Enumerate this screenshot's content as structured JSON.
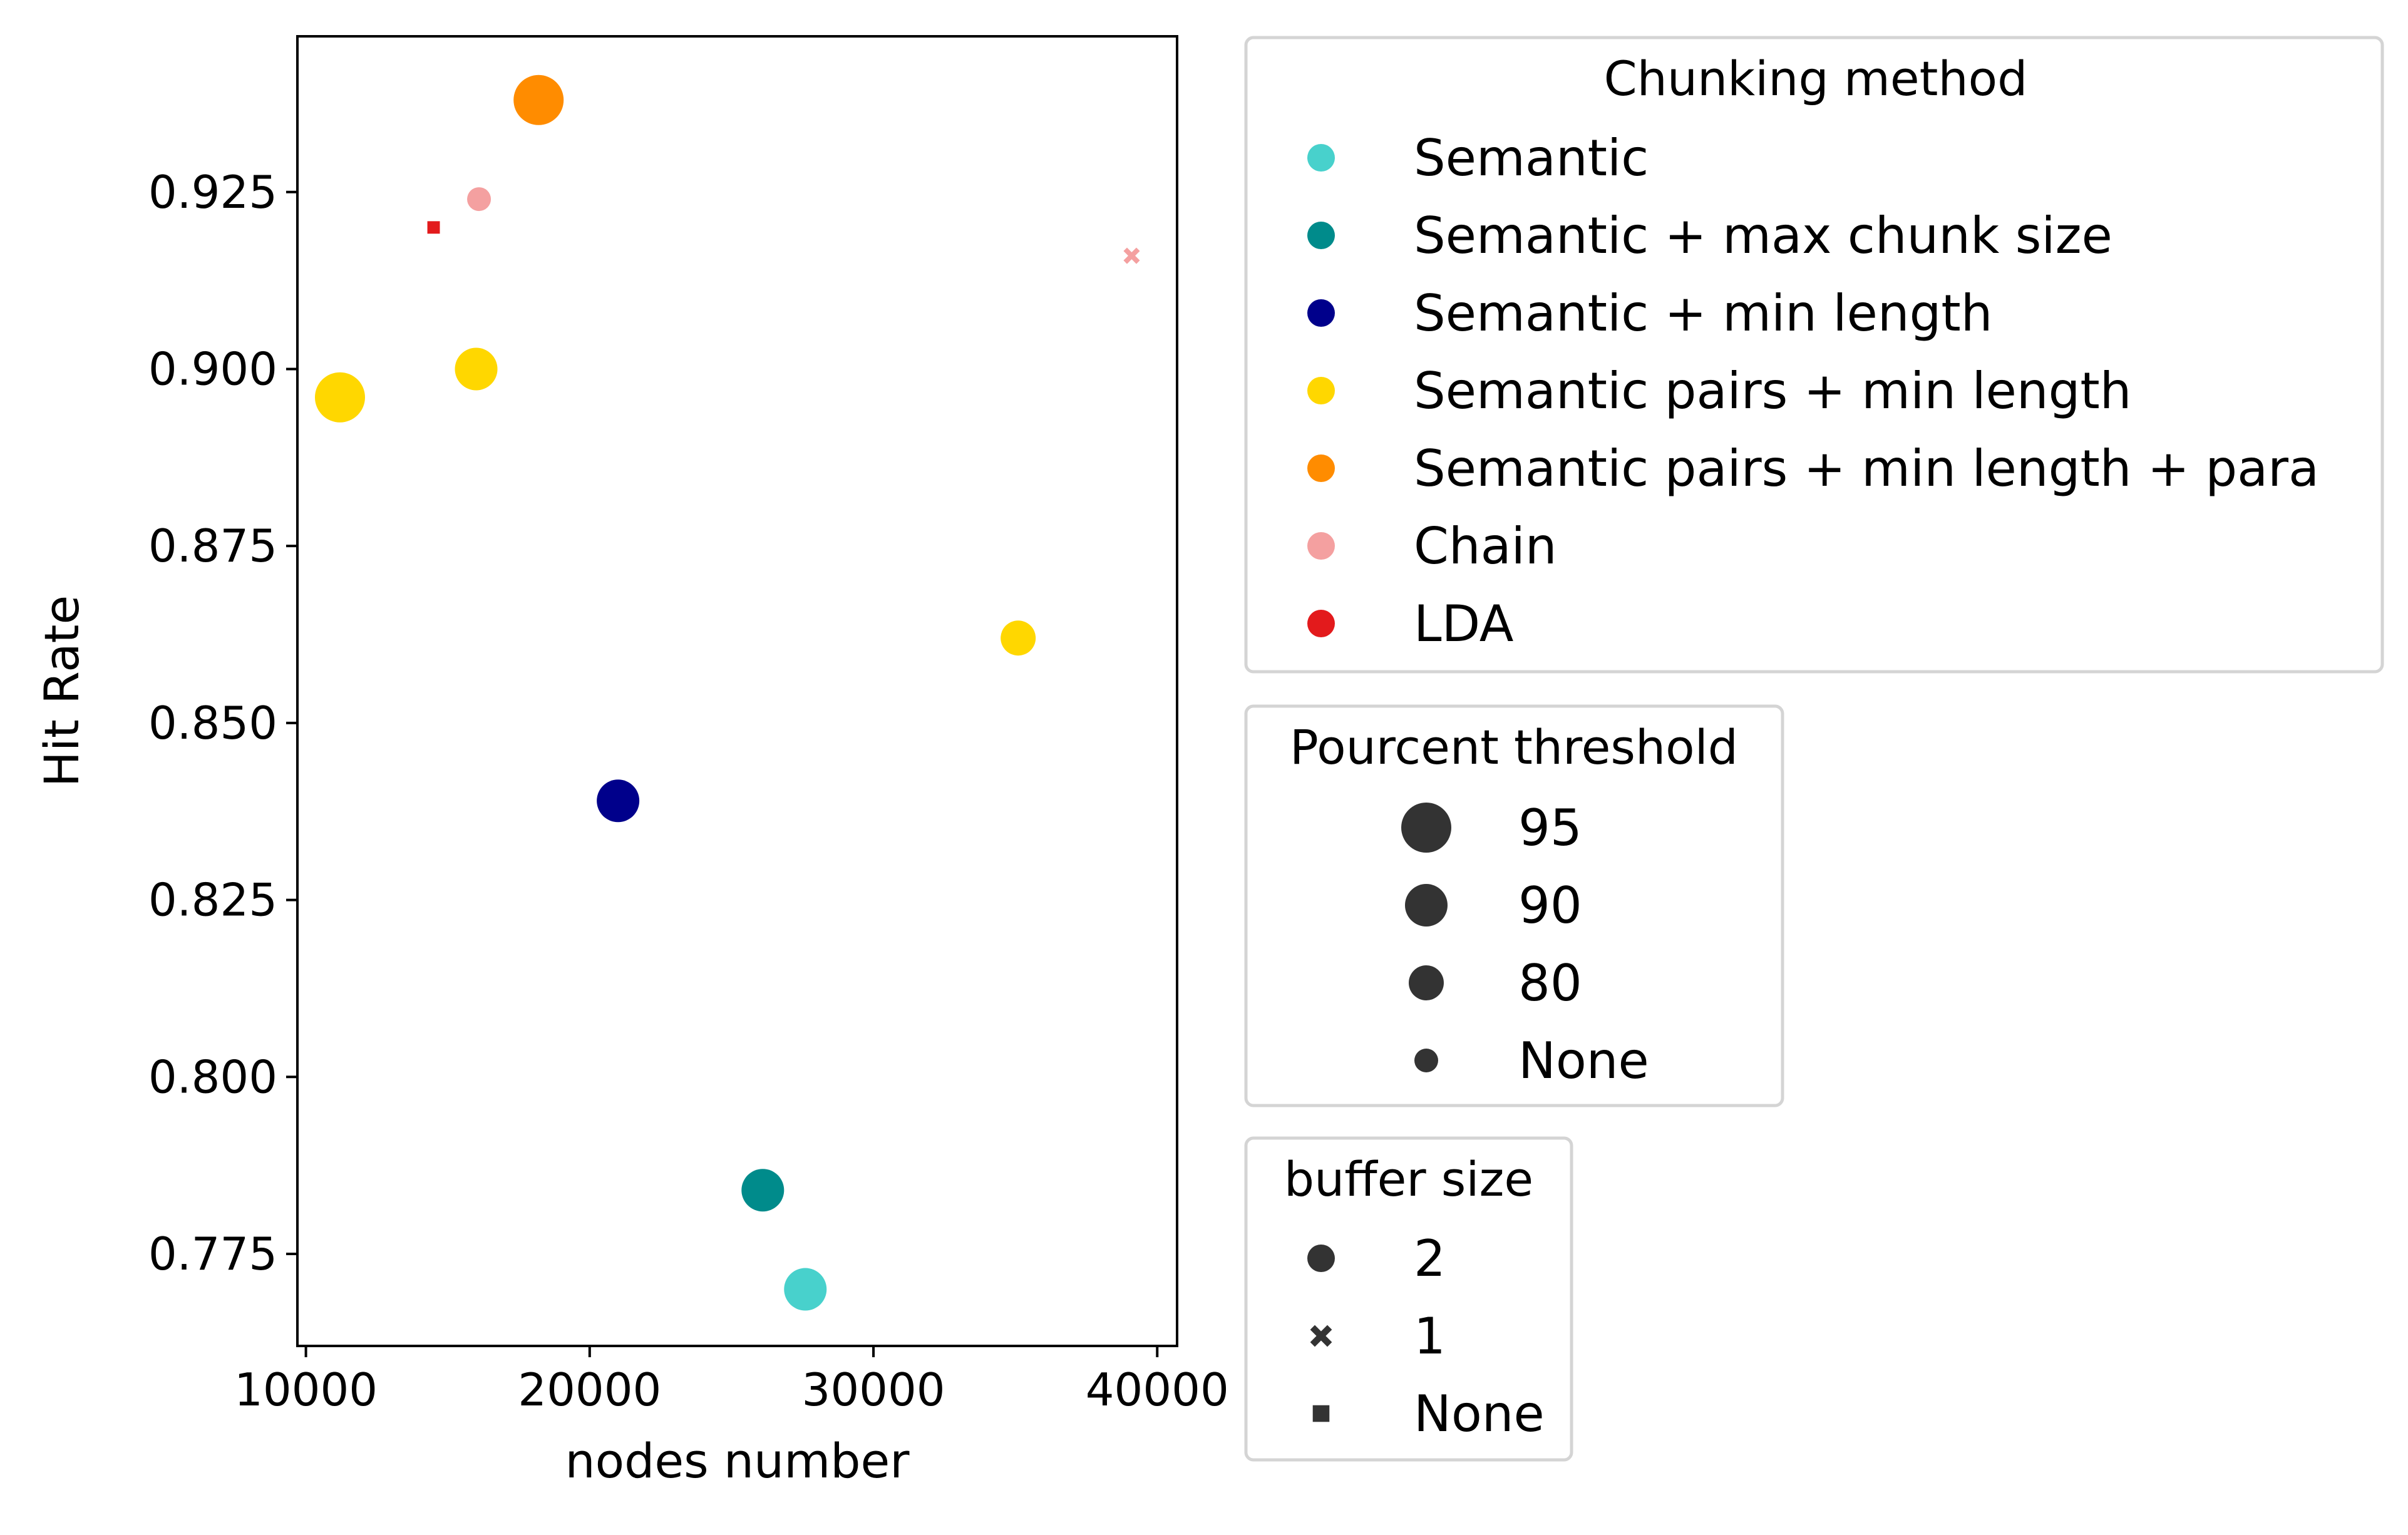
{
  "chart_data": {
    "type": "scatter",
    "xlabel": "nodes number",
    "ylabel": "Hit Rate",
    "xlim": [
      9700,
      40700
    ],
    "ylim": [
      0.762,
      0.947
    ],
    "xticks": [
      10000,
      20000,
      30000,
      40000
    ],
    "xtick_labels": [
      "10000",
      "20000",
      "30000",
      "40000"
    ],
    "yticks": [
      0.775,
      0.8,
      0.825,
      0.85,
      0.875,
      0.9,
      0.925
    ],
    "ytick_labels": [
      "0.775",
      "0.800",
      "0.825",
      "0.850",
      "0.875",
      "0.900",
      "0.925"
    ],
    "grid": false,
    "points": [
      {
        "x": 18200,
        "y": 0.938,
        "method": "Semantic pairs + min length + para",
        "threshold": "95",
        "buffer": "2"
      },
      {
        "x": 11200,
        "y": 0.896,
        "method": "Semantic pairs + min length",
        "threshold": "95",
        "buffer": "2"
      },
      {
        "x": 16000,
        "y": 0.9,
        "method": "Semantic pairs + min length",
        "threshold": "90",
        "buffer": "2"
      },
      {
        "x": 35100,
        "y": 0.862,
        "method": "Semantic pairs + min length",
        "threshold": "80",
        "buffer": "2"
      },
      {
        "x": 16100,
        "y": 0.924,
        "method": "Chain",
        "threshold": "None",
        "buffer": "2"
      },
      {
        "x": 39100,
        "y": 0.916,
        "method": "Chain",
        "threshold": "None",
        "buffer": "1"
      },
      {
        "x": 14500,
        "y": 0.92,
        "method": "LDA",
        "threshold": "None",
        "buffer": "None"
      },
      {
        "x": 21000,
        "y": 0.839,
        "method": "Semantic + min length",
        "threshold": "90",
        "buffer": "2"
      },
      {
        "x": 26100,
        "y": 0.784,
        "method": "Semantic + max chunk size",
        "threshold": "90",
        "buffer": "2"
      },
      {
        "x": 27600,
        "y": 0.77,
        "method": "Semantic",
        "threshold": "90",
        "buffer": "2"
      }
    ],
    "legends": [
      {
        "title": "Chunking method",
        "kind": "color",
        "entries": [
          {
            "label": "Semantic",
            "color": "#48d1cc"
          },
          {
            "label": "Semantic + max chunk size",
            "color": "#008b8b"
          },
          {
            "label": "Semantic + min length",
            "color": "#00008b"
          },
          {
            "label": "Semantic pairs + min length",
            "color": "#ffd700"
          },
          {
            "label": "Semantic pairs + min length + para",
            "color": "#ff8c00"
          },
          {
            "label": "Chain",
            "color": "#f4a0a0"
          },
          {
            "label": "LDA",
            "color": "#e31a1c"
          }
        ]
      },
      {
        "title": "Pourcent threshold",
        "kind": "size",
        "entries": [
          {
            "label": "95",
            "level": 95
          },
          {
            "label": "90",
            "level": 90
          },
          {
            "label": "80",
            "level": 80
          },
          {
            "label": "None",
            "level": 0
          }
        ]
      },
      {
        "title": "buffer size",
        "kind": "marker",
        "entries": [
          {
            "label": "2",
            "marker": "circle"
          },
          {
            "label": "1",
            "marker": "x"
          },
          {
            "label": "None",
            "marker": "square"
          }
        ]
      }
    ],
    "legend_placement": "outside-right"
  }
}
